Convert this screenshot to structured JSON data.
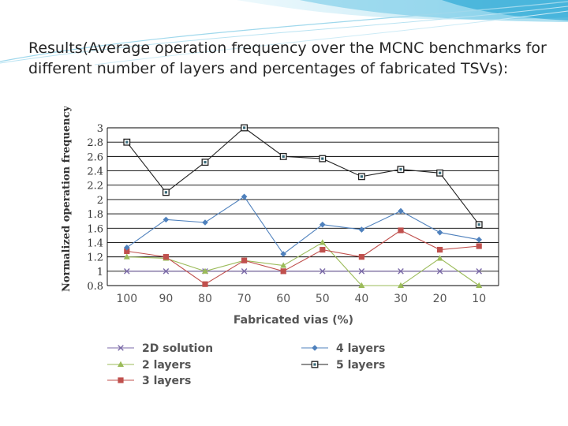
{
  "slide": {
    "text": "Results(Average operation frequency over the MCNC benchmarks for different number of layers and percentages of fabricated TSVs):"
  },
  "chart_data": {
    "type": "line",
    "title": "",
    "xlabel": "Fabricated vias (%)",
    "ylabel": "Normalized operation frequency",
    "categories": [
      "100",
      "90",
      "80",
      "70",
      "60",
      "50",
      "40",
      "30",
      "20",
      "10"
    ],
    "ylim": [
      0.8,
      3
    ],
    "yticks": [
      "0.8",
      "1",
      "1.2",
      "1.4",
      "1.6",
      "1.8",
      "2",
      "2.2",
      "2.4",
      "2.6",
      "2.8",
      "3"
    ],
    "grid": true,
    "legend_position": "bottom",
    "series": [
      {
        "name": "2D solution",
        "color": "#7b6aa8",
        "marker": "x",
        "values": [
          1.0,
          1.0,
          1.0,
          1.0,
          1.0,
          1.0,
          1.0,
          1.0,
          1.0,
          1.0
        ]
      },
      {
        "name": "2 layers",
        "color": "#9bbb59",
        "marker": "triangle",
        "values": [
          1.2,
          1.18,
          1.0,
          1.15,
          1.08,
          1.4,
          0.8,
          0.8,
          1.18,
          0.8
        ]
      },
      {
        "name": "3 layers",
        "color": "#c0504d",
        "marker": "square",
        "values": [
          1.28,
          1.2,
          0.82,
          1.15,
          1.0,
          1.3,
          1.2,
          1.57,
          1.3,
          1.35
        ]
      },
      {
        "name": "4 layers",
        "color": "#4f81bd",
        "marker": "diamond",
        "values": [
          1.33,
          1.72,
          1.68,
          2.04,
          1.24,
          1.65,
          1.58,
          1.84,
          1.54,
          1.44
        ]
      },
      {
        "name": "5 layers",
        "color": "#222222",
        "marker": "square-open",
        "values": [
          2.8,
          2.1,
          2.52,
          3.0,
          2.6,
          2.57,
          2.32,
          2.42,
          2.37,
          1.65
        ]
      }
    ]
  }
}
